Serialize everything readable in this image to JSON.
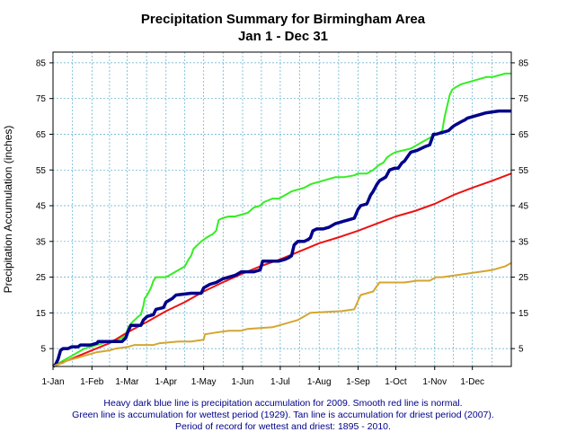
{
  "chart_data": {
    "type": "line",
    "title": "Precipitation Summary for Birmingham Area",
    "subtitle": "Jan 1 - Dec 31",
    "ylabel": "Precipitation Accumulation (inches)",
    "xlabel": "",
    "ylim": [
      0,
      88
    ],
    "yticks": [
      5,
      15,
      25,
      35,
      45,
      55,
      65,
      75,
      85
    ],
    "x_tick_labels": [
      "1-Jan",
      "1-Feb",
      "1-Mar",
      "1-Apr",
      "1-May",
      "1-Jun",
      "1-Jul",
      "1-Aug",
      "1-Sep",
      "1-Oct",
      "1-Nov",
      "1-Dec"
    ],
    "x_tick_days": [
      0,
      31,
      59,
      90,
      120,
      151,
      181,
      212,
      243,
      273,
      304,
      334
    ],
    "xlim_days": [
      0,
      365
    ],
    "grid": true,
    "caption": [
      "Heavy dark blue line is precipitation accumulation for 2009. Smooth red line is normal.",
      "Green line is accumulation for wettest period (1929).    Tan line is accumulation for driest period (2007).",
      "Period of record for wettest and driest: 1895 - 2010."
    ],
    "series": [
      {
        "key": "wettest",
        "color": "#33ee22",
        "width": 2,
        "points": [
          [
            0,
            0
          ],
          [
            5,
            1
          ],
          [
            10,
            2
          ],
          [
            15,
            3
          ],
          [
            20,
            4
          ],
          [
            25,
            5
          ],
          [
            30,
            5.5
          ],
          [
            35,
            6
          ],
          [
            40,
            6.5
          ],
          [
            45,
            7
          ],
          [
            50,
            7.5
          ],
          [
            55,
            8
          ],
          [
            58,
            9
          ],
          [
            60,
            11
          ],
          [
            62,
            12
          ],
          [
            65,
            13
          ],
          [
            68,
            14
          ],
          [
            70,
            14.5
          ],
          [
            72,
            17
          ],
          [
            73,
            19
          ],
          [
            75,
            20
          ],
          [
            78,
            22
          ],
          [
            80,
            24
          ],
          [
            82,
            25
          ],
          [
            90,
            25
          ],
          [
            95,
            26
          ],
          [
            100,
            27
          ],
          [
            105,
            28
          ],
          [
            108,
            30
          ],
          [
            110,
            31
          ],
          [
            112,
            33
          ],
          [
            115,
            34
          ],
          [
            118,
            35
          ],
          [
            122,
            36
          ],
          [
            127,
            37
          ],
          [
            130,
            38
          ],
          [
            132,
            41
          ],
          [
            135,
            41.5
          ],
          [
            140,
            42
          ],
          [
            145,
            42
          ],
          [
            150,
            42.5
          ],
          [
            155,
            43
          ],
          [
            160,
            44.5
          ],
          [
            165,
            45
          ],
          [
            168,
            46
          ],
          [
            175,
            47
          ],
          [
            180,
            47
          ],
          [
            185,
            48
          ],
          [
            190,
            49
          ],
          [
            195,
            49.5
          ],
          [
            200,
            50
          ],
          [
            205,
            51
          ],
          [
            210,
            51.5
          ],
          [
            215,
            52
          ],
          [
            220,
            52.5
          ],
          [
            225,
            53
          ],
          [
            232,
            53
          ],
          [
            240,
            53.5
          ],
          [
            243,
            54
          ],
          [
            250,
            54
          ],
          [
            255,
            55
          ],
          [
            260,
            56.5
          ],
          [
            263,
            57
          ],
          [
            266,
            58.5
          ],
          [
            268,
            59
          ],
          [
            270,
            59.5
          ],
          [
            273,
            60
          ],
          [
            285,
            61
          ],
          [
            290,
            62
          ],
          [
            295,
            63
          ],
          [
            300,
            64
          ],
          [
            305,
            65
          ],
          [
            308,
            65.5
          ],
          [
            310,
            66
          ],
          [
            312,
            70
          ],
          [
            314,
            73
          ],
          [
            316,
            76
          ],
          [
            318,
            77.5
          ],
          [
            320,
            78
          ],
          [
            325,
            79
          ],
          [
            330,
            79.5
          ],
          [
            335,
            80
          ],
          [
            340,
            80.5
          ],
          [
            345,
            81
          ],
          [
            350,
            81
          ],
          [
            355,
            81.5
          ],
          [
            360,
            82
          ],
          [
            365,
            82
          ]
        ]
      },
      {
        "key": "normal",
        "color": "#ee1111",
        "width": 2,
        "points": [
          [
            0,
            0
          ],
          [
            15,
            2.2
          ],
          [
            31,
            4.5
          ],
          [
            45,
            6.5
          ],
          [
            59,
            9.5
          ],
          [
            75,
            12.5
          ],
          [
            90,
            15.5
          ],
          [
            105,
            18
          ],
          [
            120,
            21
          ],
          [
            135,
            23.5
          ],
          [
            151,
            26
          ],
          [
            165,
            28
          ],
          [
            181,
            30
          ],
          [
            195,
            32
          ],
          [
            212,
            34.5
          ],
          [
            228,
            36.2
          ],
          [
            243,
            38
          ],
          [
            258,
            40
          ],
          [
            273,
            42
          ],
          [
            288,
            43.5
          ],
          [
            304,
            45.5
          ],
          [
            319,
            48
          ],
          [
            334,
            50
          ],
          [
            350,
            52
          ],
          [
            365,
            54
          ]
        ]
      },
      {
        "key": "year2009",
        "color": "#00008b",
        "width": 3.5,
        "points": [
          [
            0,
            0
          ],
          [
            2,
            0.5
          ],
          [
            4,
            2
          ],
          [
            6,
            4.5
          ],
          [
            8,
            5
          ],
          [
            12,
            5
          ],
          [
            15,
            5.5
          ],
          [
            20,
            5.5
          ],
          [
            22,
            6
          ],
          [
            30,
            6
          ],
          [
            35,
            6.5
          ],
          [
            36,
            7
          ],
          [
            55,
            7
          ],
          [
            58,
            8
          ],
          [
            60,
            10
          ],
          [
            62,
            11.5
          ],
          [
            70,
            11.5
          ],
          [
            72,
            13
          ],
          [
            75,
            14
          ],
          [
            80,
            14.5
          ],
          [
            82,
            16
          ],
          [
            88,
            16.5
          ],
          [
            90,
            18
          ],
          [
            95,
            19
          ],
          [
            98,
            20
          ],
          [
            110,
            20.5
          ],
          [
            118,
            20.5
          ],
          [
            120,
            22
          ],
          [
            125,
            23
          ],
          [
            130,
            23.5
          ],
          [
            135,
            24.5
          ],
          [
            140,
            25
          ],
          [
            145,
            25.5
          ],
          [
            150,
            26.5
          ],
          [
            160,
            26.5
          ],
          [
            165,
            27
          ],
          [
            167,
            29.5
          ],
          [
            175,
            29.5
          ],
          [
            180,
            29.5
          ],
          [
            185,
            30
          ],
          [
            188,
            30.5
          ],
          [
            190,
            31
          ],
          [
            192,
            34
          ],
          [
            195,
            35
          ],
          [
            200,
            35
          ],
          [
            203,
            35.5
          ],
          [
            205,
            36
          ],
          [
            207,
            38
          ],
          [
            210,
            38.5
          ],
          [
            215,
            38.5
          ],
          [
            220,
            39
          ],
          [
            225,
            40
          ],
          [
            230,
            40.5
          ],
          [
            235,
            41
          ],
          [
            240,
            41.5
          ],
          [
            243,
            44
          ],
          [
            245,
            45
          ],
          [
            250,
            45.5
          ],
          [
            253,
            48
          ],
          [
            255,
            49
          ],
          [
            258,
            51
          ],
          [
            260,
            52
          ],
          [
            265,
            53
          ],
          [
            268,
            55
          ],
          [
            272,
            55.5
          ],
          [
            275,
            55.5
          ],
          [
            278,
            57
          ],
          [
            280,
            57.5
          ],
          [
            283,
            59
          ],
          [
            285,
            60
          ],
          [
            290,
            60.5
          ],
          [
            293,
            61
          ],
          [
            296,
            61.5
          ],
          [
            300,
            62
          ],
          [
            303,
            65
          ],
          [
            305,
            65
          ],
          [
            310,
            65.5
          ],
          [
            315,
            66
          ],
          [
            318,
            67
          ],
          [
            320,
            67.5
          ],
          [
            325,
            68.5
          ],
          [
            328,
            69
          ],
          [
            330,
            69.5
          ],
          [
            335,
            70
          ],
          [
            340,
            70.5
          ],
          [
            345,
            71
          ],
          [
            355,
            71.5
          ],
          [
            365,
            71.5
          ]
        ]
      },
      {
        "key": "driest",
        "color": "#d4a631",
        "width": 2,
        "points": [
          [
            0,
            0
          ],
          [
            3,
            0.5
          ],
          [
            8,
            1
          ],
          [
            10,
            1.5
          ],
          [
            15,
            2
          ],
          [
            20,
            2.5
          ],
          [
            25,
            3
          ],
          [
            30,
            3.5
          ],
          [
            35,
            4
          ],
          [
            45,
            4.5
          ],
          [
            50,
            5
          ],
          [
            60,
            5.5
          ],
          [
            65,
            6
          ],
          [
            80,
            6
          ],
          [
            85,
            6.5
          ],
          [
            100,
            7
          ],
          [
            110,
            7
          ],
          [
            120,
            7.5
          ],
          [
            121,
            9
          ],
          [
            130,
            9.5
          ],
          [
            140,
            10
          ],
          [
            150,
            10
          ],
          [
            155,
            10.5
          ],
          [
            175,
            11
          ],
          [
            185,
            12
          ],
          [
            190,
            12.5
          ],
          [
            195,
            13
          ],
          [
            200,
            14
          ],
          [
            205,
            15
          ],
          [
            230,
            15.5
          ],
          [
            240,
            16
          ],
          [
            245,
            20
          ],
          [
            250,
            20.5
          ],
          [
            255,
            21
          ],
          [
            260,
            23.5
          ],
          [
            270,
            23.5
          ],
          [
            280,
            23.5
          ],
          [
            290,
            24
          ],
          [
            300,
            24
          ],
          [
            305,
            25
          ],
          [
            310,
            25
          ],
          [
            320,
            25.5
          ],
          [
            330,
            26
          ],
          [
            340,
            26.5
          ],
          [
            350,
            27
          ],
          [
            355,
            27.5
          ],
          [
            360,
            28
          ],
          [
            365,
            29
          ]
        ]
      }
    ]
  }
}
